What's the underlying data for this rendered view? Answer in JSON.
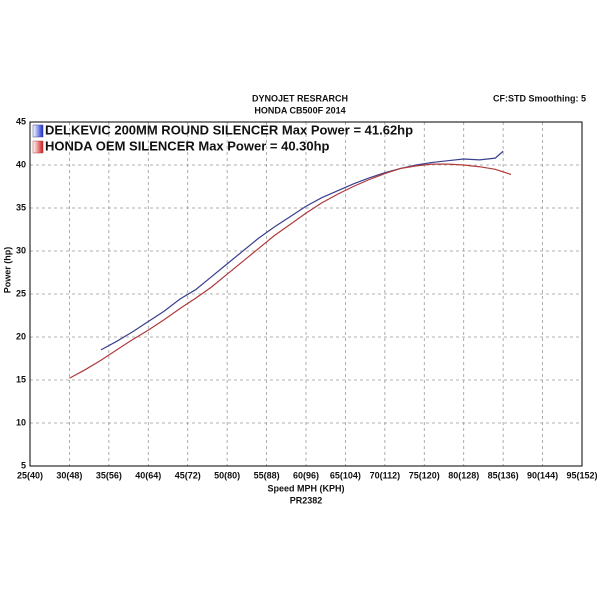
{
  "chart_data": {
    "type": "line",
    "title": "DYNOJET RESRARCH",
    "subtitle": "HONDA CB500F 2014",
    "annotation": "CF:STD Smoothing: 5",
    "x_label": "Speed MPH (KPH)",
    "footer": "PR2382",
    "y_label": "Power (hp)",
    "xlim": [
      25,
      95
    ],
    "ylim": [
      5,
      45
    ],
    "xticks": [
      {
        "value": 25,
        "label": "25(40)"
      },
      {
        "value": 30,
        "label": "30(48)"
      },
      {
        "value": 35,
        "label": "35(56)"
      },
      {
        "value": 40,
        "label": "40(64)"
      },
      {
        "value": 45,
        "label": "45(72)"
      },
      {
        "value": 50,
        "label": "50(80)"
      },
      {
        "value": 55,
        "label": "55(88)"
      },
      {
        "value": 60,
        "label": "60(96)"
      },
      {
        "value": 65,
        "label": "65(104)"
      },
      {
        "value": 70,
        "label": "70(112)"
      },
      {
        "value": 75,
        "label": "75(120)"
      },
      {
        "value": 80,
        "label": "80(128)"
      },
      {
        "value": 85,
        "label": "85(136)"
      },
      {
        "value": 90,
        "label": "90(144)"
      },
      {
        "value": 95,
        "label": "95(152)"
      }
    ],
    "yticks": [
      5,
      10,
      15,
      20,
      25,
      30,
      35,
      40,
      45
    ],
    "grid": true,
    "series": [
      {
        "name": "DELKEVIC 200MM ROUND SILENCER Max Power = 41.62hp",
        "color": "#3a3f8f",
        "x": [
          34,
          36,
          38,
          40,
          42,
          44,
          46,
          48,
          50,
          52,
          54,
          56,
          58,
          60,
          62,
          64,
          66,
          68,
          70,
          72,
          74,
          76,
          78,
          80,
          82,
          84,
          85
        ],
        "values": [
          18.5,
          19.5,
          20.6,
          21.8,
          23.0,
          24.4,
          25.5,
          27.0,
          28.5,
          30.0,
          31.5,
          32.8,
          34.0,
          35.2,
          36.2,
          37.0,
          37.8,
          38.5,
          39.1,
          39.6,
          40.0,
          40.3,
          40.5,
          40.7,
          40.6,
          40.8,
          41.6
        ]
      },
      {
        "name": "HONDA OEM SILENCER Max Power = 40.30hp",
        "color": "#b03a3a",
        "x": [
          30,
          32,
          34,
          36,
          38,
          40,
          42,
          44,
          46,
          48,
          50,
          52,
          54,
          56,
          58,
          60,
          62,
          64,
          66,
          68,
          70,
          72,
          74,
          76,
          78,
          80,
          82,
          84,
          86
        ],
        "values": [
          15.2,
          16.2,
          17.3,
          18.5,
          19.7,
          20.8,
          22.0,
          23.3,
          24.5,
          25.8,
          27.3,
          28.8,
          30.3,
          31.8,
          33.1,
          34.4,
          35.6,
          36.6,
          37.5,
          38.3,
          39.0,
          39.6,
          39.9,
          40.1,
          40.1,
          40.0,
          39.8,
          39.5,
          38.9
        ]
      }
    ]
  }
}
